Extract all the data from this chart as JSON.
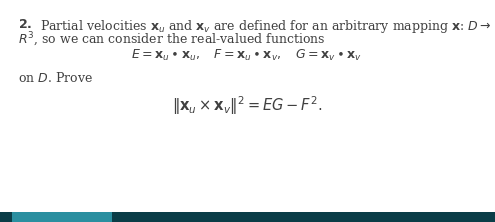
{
  "background_color": "#ffffff",
  "bottom_bar_dark": "#0a3d47",
  "bottom_bar_light": "#2a8fa0",
  "text_color": "#404040",
  "fig_width": 4.95,
  "fig_height": 2.22,
  "dpi": 100
}
